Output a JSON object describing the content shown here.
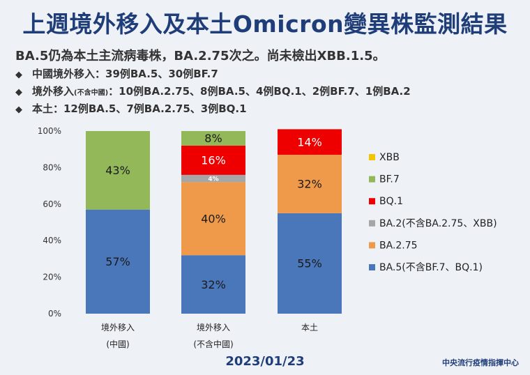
{
  "header": {
    "title": "上週境外移入及本土Omicron變異株監測結果",
    "subtitle": "BA.5仍為本土主流病毒株，BA.2.75次之。尚未檢出XBB.1.5。",
    "bullets": [
      {
        "text": "中國境外移入：39例BA.5、30例BF.7",
        "small": "",
        "rest": ""
      },
      {
        "text": "境外移入",
        "small": "(不含中國)",
        "rest": "：10例BA.2.75、8例BA.5、4例BQ.1、2例BF.7、1例BA.2"
      },
      {
        "text": "本土：12例BA.5、7例BA.2.75、3例BQ.1",
        "small": "",
        "rest": ""
      }
    ],
    "bullet_icon": "diamond-bullet-icon"
  },
  "chart_data": {
    "type": "bar",
    "stacked": true,
    "percent": true,
    "categories": [
      {
        "line1": "境外移入",
        "line2": "(中國)"
      },
      {
        "line1": "境外移入",
        "line2": "(不含中國)"
      },
      {
        "line1": "本土",
        "line2": ""
      }
    ],
    "yticks": [
      "0%",
      "20%",
      "40%",
      "60%",
      "80%",
      "100%"
    ],
    "ylim": [
      0,
      100
    ],
    "grid": false,
    "legend_position": "right",
    "series": [
      {
        "name": "BA.5(不含BF.7、BQ.1)",
        "color": "#4a76ba",
        "values": [
          57,
          32,
          55
        ],
        "labels": [
          "57%",
          "32%",
          "55%"
        ],
        "label_color": "#1a1a1a"
      },
      {
        "name": "BA.2.75",
        "color": "#ef9a4a",
        "values": [
          0,
          40,
          32
        ],
        "labels": [
          "",
          "40%",
          "32%"
        ],
        "label_color": "#1a1a1a"
      },
      {
        "name": "BA.2(不含BA.2.75、XBB)",
        "color": "#a6a6a6",
        "values": [
          0,
          4,
          0
        ],
        "labels": [
          "",
          "4%",
          ""
        ],
        "label_color": "#ffffff"
      },
      {
        "name": "BQ.1",
        "color": "#ef0000",
        "values": [
          0,
          16,
          14
        ],
        "labels": [
          "",
          "16%",
          "14%"
        ],
        "label_color": "#ffffff"
      },
      {
        "name": "BF.7",
        "color": "#93b85a",
        "values": [
          43,
          8,
          0
        ],
        "labels": [
          "43%",
          "8%",
          ""
        ],
        "label_color": "#1a1a1a"
      },
      {
        "name": "XBB",
        "color": "#f5c400",
        "values": [
          0,
          0,
          0
        ],
        "labels": [
          "",
          "",
          ""
        ],
        "label_color": "#1a1a1a"
      }
    ],
    "legend_order": [
      "XBB",
      "BF.7",
      "BQ.1",
      "BA.2(不含BA.2.75、XBB)",
      "BA.2.75",
      "BA.5(不含BF.7、BQ.1)"
    ]
  },
  "footer": {
    "date": "2023/01/23",
    "org": "中央流行疫情指揮中心"
  }
}
